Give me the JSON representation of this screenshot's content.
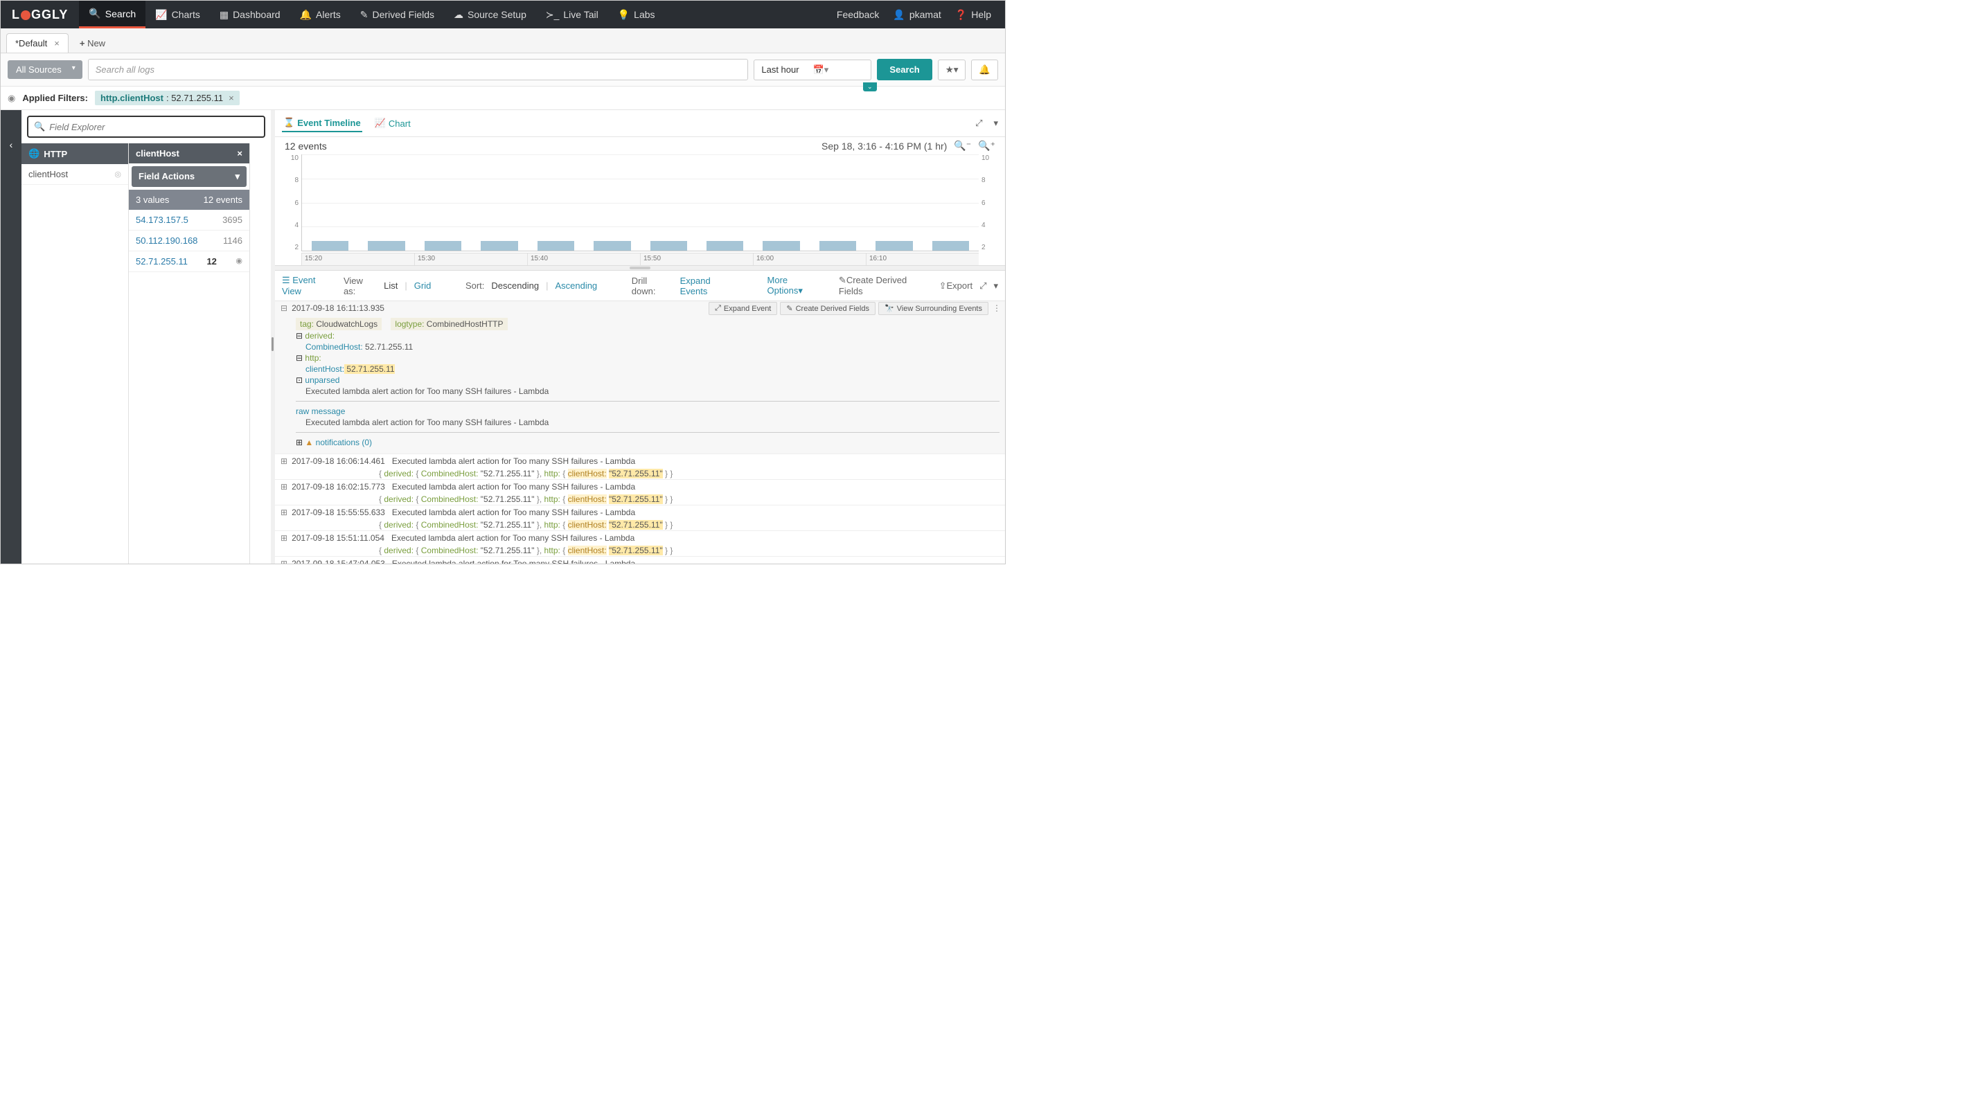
{
  "brand": "LOGGLY",
  "nav": {
    "search": "Search",
    "charts": "Charts",
    "dashboard": "Dashboard",
    "alerts": "Alerts",
    "derived": "Derived Fields",
    "source": "Source Setup",
    "livetail": "Live Tail",
    "labs": "Labs",
    "feedback": "Feedback",
    "user": "pkamat",
    "help": "Help"
  },
  "tabs": {
    "default": "*Default",
    "new": "New"
  },
  "searchbar": {
    "sources": "All Sources",
    "placeholder": "Search all logs",
    "timerange": "Last hour",
    "search_btn": "Search"
  },
  "filters": {
    "label": "Applied Filters:",
    "chip_key": "http.clientHost",
    "chip_val": ": 52.71.255.11"
  },
  "field_explorer": {
    "placeholder": "Field Explorer",
    "group": "HTTP",
    "item": "clientHost"
  },
  "values_panel": {
    "title": "clientHost",
    "actions": "Field Actions",
    "summary_vals": "3 values",
    "summary_evts": "12 events",
    "rows": [
      {
        "ip": "54.173.157.5",
        "count": "3695"
      },
      {
        "ip": "50.112.190.168",
        "count": "1146"
      },
      {
        "ip": "52.71.255.11",
        "count": "12"
      }
    ]
  },
  "timeline": {
    "tab_timeline": "Event Timeline",
    "tab_chart": "Chart",
    "count": "12 events",
    "range": "Sep 18, 3:16 - 4:16 PM  (1 hr)",
    "y_ticks": [
      "10",
      "8",
      "6",
      "4",
      "2"
    ],
    "x_ticks": [
      "15:20",
      "15:30",
      "15:40",
      "15:50",
      "16:00",
      "16:10"
    ],
    "bar_heights_pct": [
      10,
      10,
      10,
      10,
      10,
      10,
      10,
      10,
      10,
      10,
      10,
      10
    ],
    "bar_color": "#a6c5d6",
    "grid_color": "#f0f0f0",
    "ylim": [
      0,
      10
    ]
  },
  "evctrl": {
    "eventview": "Event View",
    "viewas": "View as:",
    "list": "List",
    "grid": "Grid",
    "sort": "Sort:",
    "desc": "Descending",
    "asc": "Ascending",
    "drilldown": "Drill down:",
    "expand": "Expand Events",
    "more": "More Options",
    "create_df": "Create Derived Fields",
    "export": "Export"
  },
  "event_actions": {
    "expand": "Expand Event",
    "create_df": "Create Derived Fields",
    "surrounding": "View Surrounding Events"
  },
  "expanded_event": {
    "ts": "2017-09-18 16:11:13.935",
    "tag_k": "tag:",
    "tag_v": " CloudwatchLogs",
    "logtype_k": "logtype:",
    "logtype_v": " CombinedHostHTTP",
    "derived": "derived:",
    "combinedhost_k": "CombinedHost:",
    "combinedhost_v": " 52.71.255.11",
    "http": "http:",
    "clienthost_k": "clientHost:",
    "clienthost_v": " 52.71.255.11",
    "unparsed": "unparsed",
    "msg": "Executed lambda alert action for Too many SSH failures - Lambda",
    "rawmsg_k": "raw message",
    "rawmsg_v": "Executed lambda alert action for Too many SSH failures - Lambda",
    "notifications": "notifications (0)"
  },
  "collapsed": {
    "msg": "Executed lambda alert action for Too many SSH failures - Lambda",
    "nested": {
      "derived": "derived:",
      "combinedhost": "CombinedHost:",
      "combinedhost_v": "\"52.71.255.11\"",
      "http": "http:",
      "clienthost": "clientHost:",
      "clienthost_v": "\"52.71.255.11\""
    },
    "rows": [
      "2017-09-18 16:06:14.461",
      "2017-09-18 16:02:15.773",
      "2017-09-18 15:55:55.633",
      "2017-09-18 15:51:11.054",
      "2017-09-18 15:47:04.053"
    ]
  }
}
